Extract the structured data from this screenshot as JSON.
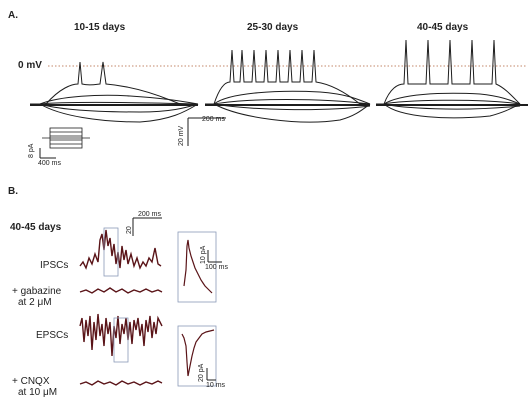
{
  "panel_a": {
    "label": "A.",
    "ages": [
      "10-15 days",
      "25-30 days",
      "40-45 days"
    ],
    "zero_label": "0 mV",
    "scale_voltage": {
      "time": "200 ms",
      "amp": "20 mV"
    },
    "scale_current": {
      "time": "400 ms",
      "amp": "8 pA"
    }
  },
  "panel_b": {
    "label": "B.",
    "age": "40-45 days",
    "scale_main": {
      "time": "200 ms",
      "amp": "20"
    },
    "ipsc": {
      "label": "IPSCs",
      "drug_line1": "+ gabazine",
      "drug_line2": "at 2 μM",
      "inset_scale": {
        "amp": "10 pA",
        "time": "100 ms"
      }
    },
    "epsc": {
      "label": "EPSCs",
      "drug_line1": "+ CNQX",
      "drug_line2": "at 10 μM",
      "inset_scale": {
        "amp": "20 pA",
        "time": "10 ms"
      }
    }
  },
  "colors": {
    "trace_b": "#5a1418",
    "trace_a": "#1e1e1e",
    "zero_line": "#b0603a"
  }
}
